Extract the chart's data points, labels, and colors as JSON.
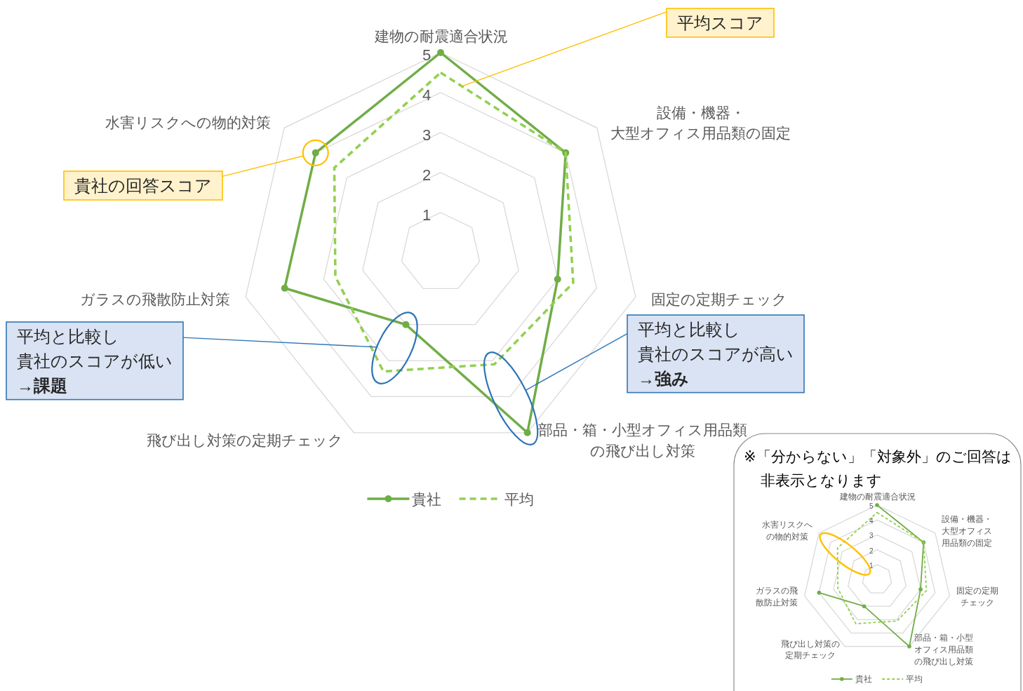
{
  "chart_data": [
    {
      "type": "radar",
      "categories": [
        "建物の耐震適合状況",
        "設備・機器・大型オフィス用品類の固定",
        "固定の定期チェック",
        "部品・箱・小型オフィス用品類の飛び出し対策",
        "飛び出し対策の定期チェック",
        "ガラスの飛散防止対策",
        "水害リスクへの物的対策"
      ],
      "series": [
        {
          "name": "貴社",
          "color": "#70ad47",
          "values": [
            5,
            4,
            3,
            5,
            2,
            4,
            4
          ],
          "marker": "circle",
          "line_style": "solid"
        },
        {
          "name": "平均",
          "color": "#92d050",
          "values": [
            4.5,
            4,
            3.4,
            3.1,
            3.3,
            2.7,
            3.4
          ],
          "marker": "none",
          "line_style": "dashed"
        }
      ],
      "ylim": [
        0,
        5
      ],
      "yticks": [
        1,
        2,
        3,
        4,
        5
      ],
      "grid": true,
      "legend": "bottom",
      "annotations": [
        {
          "text": "平均スコア",
          "x": "建物の耐震適合状況"
        },
        {
          "text": "貴社の回答スコア",
          "x": "水害リスクへの物的対策"
        },
        {
          "text": "平均と比較し貴社のスコアが低い",
          "x": "飛び出し対策の定期チェック"
        },
        "→課題",
        {
          "text": "平均と比較し貴社のスコアが高い",
          "x": "部品・箱・小型オフィス用品類の飛び出し対策"
        },
        "→強み"
      ]
    },
    {
      "type": "radar",
      "title": "※「分からない」「対象外」のご回答は非表示となります",
      "categories": [
        "建物の耐震適合状況",
        "設備・機器・大型オフィス用品類の固定",
        "固定の定期チェック",
        "部品・箱・小型オフィス用品類の飛び出し対策",
        "飛び出し対策の定期チェック",
        "ガラスの飛散防止対策",
        "水害リスクへの物的対策"
      ],
      "series": [
        {
          "name": "貴社",
          "color": "#70ad47",
          "values": [
            5,
            4,
            3,
            5,
            2,
            4,
            null
          ],
          "marker": "circle",
          "line_style": "solid"
        },
        {
          "name": "平均",
          "color": "#92d050",
          "values": [
            4.5,
            4,
            3.4,
            3.1,
            3.3,
            2.7,
            3.4
          ],
          "marker": "none",
          "line_style": "dashed"
        }
      ],
      "ylim": [
        0,
        5
      ],
      "yticks": [
        1,
        2,
        3,
        4,
        5
      ],
      "grid": true,
      "legend": "bottom"
    }
  ]
}
